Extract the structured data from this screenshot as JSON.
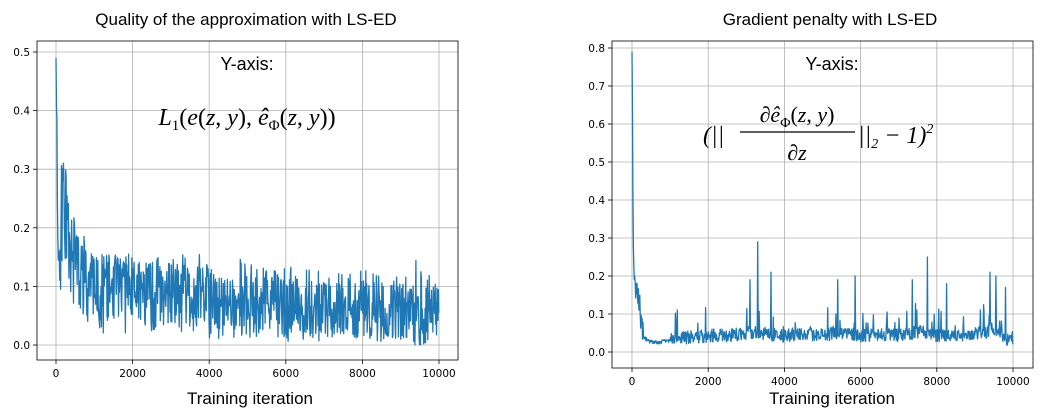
{
  "chart_data": [
    {
      "type": "line",
      "title": "Quality of the approximation with LS-ED",
      "xlabel": "Training iteration",
      "ylabel": "",
      "annotation_text": "Y-axis:",
      "annotation_formula": "L₁(e(z, y), ê_Φ(z, y))",
      "xlim": [
        0,
        10000
      ],
      "ylim": [
        0.0,
        0.5
      ],
      "x_ticks": [
        0,
        2000,
        4000,
        6000,
        8000,
        10000
      ],
      "y_ticks": [
        0.0,
        0.1,
        0.2,
        0.3,
        0.4,
        0.5
      ],
      "x_tick_labels": [
        "0",
        "2000",
        "4000",
        "6000",
        "8000",
        "10000"
      ],
      "y_tick_labels": [
        "0.0",
        "0.1",
        "0.2",
        "0.3",
        "0.4",
        "0.5"
      ],
      "grid": true,
      "series_color": "#1f77b4",
      "series": [
        {
          "x": [
            0,
            50,
            100,
            150,
            200,
            250,
            300,
            350,
            400,
            450,
            500,
            600,
            700,
            800,
            1000,
            1200,
            1500,
            2000,
            2500,
            3000,
            3500,
            4000,
            4500,
            5000,
            5500,
            6000,
            6500,
            7000,
            7500,
            8000,
            8500,
            9000,
            9500,
            10000
          ],
          "values": [
            0.49,
            0.23,
            0.12,
            0.21,
            0.26,
            0.27,
            0.24,
            0.2,
            0.19,
            0.17,
            0.15,
            0.13,
            0.12,
            0.11,
            0.11,
            0.1,
            0.1,
            0.095,
            0.09,
            0.085,
            0.08,
            0.08,
            0.075,
            0.07,
            0.07,
            0.065,
            0.065,
            0.06,
            0.06,
            0.06,
            0.055,
            0.055,
            0.05,
            0.05
          ],
          "peak_values": [
            0.49,
            0.3,
            0.33,
            0.32,
            0.3,
            0.29,
            0.26,
            0.24,
            0.23,
            0.22,
            0.21,
            0.19,
            0.19,
            0.18,
            0.17,
            0.17,
            0.16,
            0.16,
            0.15,
            0.15,
            0.16,
            0.15,
            0.14,
            0.15,
            0.13,
            0.14,
            0.13,
            0.13,
            0.12,
            0.14,
            0.13,
            0.12,
            0.16,
            0.1
          ],
          "trough_values": [
            0.24,
            0.12,
            0.1,
            0.12,
            0.14,
            0.13,
            0.12,
            0.11,
            0.08,
            0.07,
            0.06,
            0.05,
            0.04,
            0.03,
            0.03,
            0.02,
            0.02,
            0.02,
            0.015,
            0.01,
            0.01,
            0.01,
            0.01,
            0.01,
            0.005,
            0.005,
            0.005,
            0.005,
            0.005,
            0.005,
            0.005,
            0.005,
            0.005,
            0.01
          ]
        }
      ]
    },
    {
      "type": "line",
      "title": "Gradient penalty with LS-ED",
      "xlabel": "Training iteration",
      "ylabel": "",
      "annotation_text": "Y-axis:",
      "annotation_formula": "(|| ∂ê_Φ(z, y) / ∂z ||₂ − 1)²",
      "xlim": [
        0,
        10000
      ],
      "ylim": [
        0.0,
        0.8
      ],
      "x_ticks": [
        0,
        2000,
        4000,
        6000,
        8000,
        10000
      ],
      "y_ticks": [
        0.0,
        0.1,
        0.2,
        0.3,
        0.4,
        0.5,
        0.6,
        0.7,
        0.8
      ],
      "x_tick_labels": [
        "0",
        "2000",
        "4000",
        "6000",
        "8000",
        "10000"
      ],
      "y_tick_labels": [
        "0.0",
        "0.1",
        "0.2",
        "0.3",
        "0.4",
        "0.5",
        "0.6",
        "0.7",
        "0.8"
      ],
      "grid": true,
      "series_color": "#1f77b4",
      "series": [
        {
          "x": [
            0,
            30,
            60,
            100,
            150,
            200,
            250,
            300,
            400,
            500,
            700,
            1000,
            1500,
            2000,
            2500,
            3000,
            3300,
            3500,
            4000,
            4500,
            5000,
            5500,
            6000,
            6500,
            7000,
            7500,
            7800,
            8000,
            8500,
            9000,
            9300,
            9500,
            9700,
            10000
          ],
          "values": [
            0.79,
            0.3,
            0.2,
            0.16,
            0.15,
            0.12,
            0.06,
            0.04,
            0.03,
            0.025,
            0.025,
            0.03,
            0.035,
            0.04,
            0.04,
            0.045,
            0.05,
            0.045,
            0.04,
            0.045,
            0.04,
            0.045,
            0.04,
            0.045,
            0.04,
            0.05,
            0.045,
            0.04,
            0.04,
            0.045,
            0.05,
            0.06,
            0.04,
            0.02
          ],
          "spikes": [
            {
              "x": 3300,
              "y": 0.29
            },
            {
              "x": 3100,
              "y": 0.19
            },
            {
              "x": 3650,
              "y": 0.21
            },
            {
              "x": 5400,
              "y": 0.19
            },
            {
              "x": 5850,
              "y": 0.2
            },
            {
              "x": 7350,
              "y": 0.19
            },
            {
              "x": 7750,
              "y": 0.25
            },
            {
              "x": 8250,
              "y": 0.18
            },
            {
              "x": 9400,
              "y": 0.21
            },
            {
              "x": 9550,
              "y": 0.2
            },
            {
              "x": 9800,
              "y": 0.17
            }
          ]
        }
      ]
    }
  ]
}
